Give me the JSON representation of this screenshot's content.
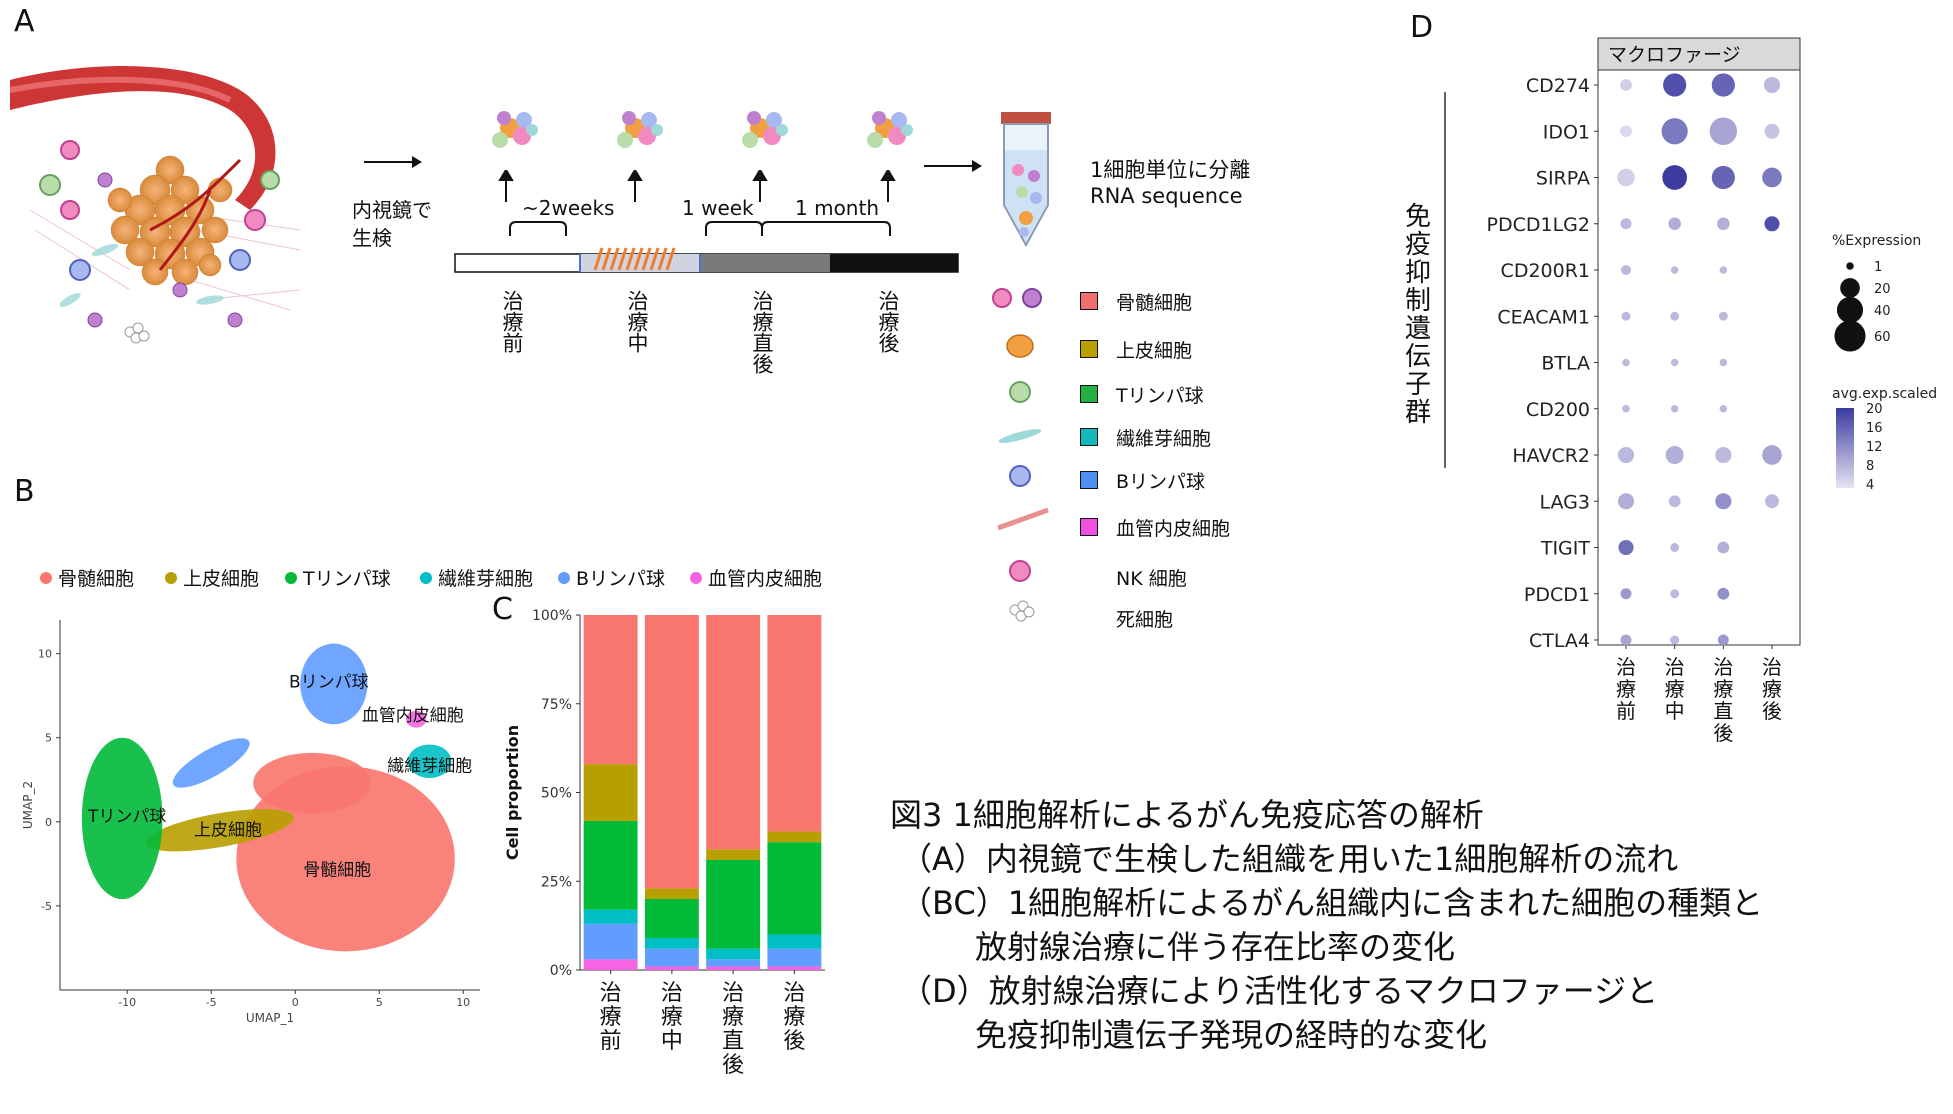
{
  "panels": {
    "a": "A",
    "b": "B",
    "c": "C",
    "d": "D"
  },
  "panel_a": {
    "step_biopsy": "内視鏡で\n生検",
    "sc_separation": "1細胞単位に分離",
    "rna_seq": "RNA sequence",
    "interval_1": "~2weeks",
    "interval_2": "1 week",
    "interval_3": "1 month",
    "timepoints": [
      "治療前",
      "治療中",
      "治療直後",
      "治療後"
    ],
    "cell_types": [
      {
        "label": "骨髄細胞",
        "color": "#F07070"
      },
      {
        "label": "上皮細胞",
        "color": "#B8A000"
      },
      {
        "label": "Tリンパ球",
        "color": "#22B040"
      },
      {
        "label": "繊維芽細胞",
        "color": "#14B8B8"
      },
      {
        "label": "Bリンパ球",
        "color": "#5090F0"
      },
      {
        "label": "血管内皮細胞",
        "color": "#F050E0"
      },
      {
        "label": "NK 細胞",
        "color": ""
      },
      {
        "label": "死細胞",
        "color": ""
      }
    ]
  },
  "umap_legend": [
    {
      "label": "骨髄細胞",
      "color": "#F8766D"
    },
    {
      "label": "上皮細胞",
      "color": "#B79F00"
    },
    {
      "label": "Tリンパ球",
      "color": "#00BA38"
    },
    {
      "label": "繊維芽細胞",
      "color": "#00BFC4"
    },
    {
      "label": "Bリンパ球",
      "color": "#619CFF"
    },
    {
      "label": "血管内皮細胞",
      "color": "#F564E3"
    }
  ],
  "chart_data": [
    {
      "type": "scatter",
      "panel": "B",
      "xlabel": "UMAP_1",
      "ylabel": "UMAP_2",
      "xlim": [
        -14,
        11
      ],
      "ylim": [
        -10,
        12
      ],
      "xticks": [
        -10,
        -5,
        0,
        5,
        10
      ],
      "yticks": [
        -5,
        0,
        5,
        10
      ],
      "clusters": [
        {
          "name": "骨髄細胞",
          "label": "骨髄細胞",
          "center": [
            2.5,
            -3.2
          ],
          "color": "#F8766D"
        },
        {
          "name": "上皮細胞",
          "label": "上皮細胞",
          "center": [
            -4,
            -0.8
          ],
          "color": "#B79F00"
        },
        {
          "name": "Tリンパ球",
          "label": "Tリンパ球",
          "center": [
            -10,
            0
          ],
          "color": "#00BA38"
        },
        {
          "name": "繊維芽細胞",
          "label": "繊維芽細胞",
          "center": [
            8,
            3
          ],
          "color": "#00BFC4"
        },
        {
          "name": "Bリンパ球",
          "label": "Bリンパ球",
          "center": [
            2,
            8
          ],
          "color": "#619CFF"
        },
        {
          "name": "血管内皮細胞",
          "label": "血管内皮細胞",
          "center": [
            7,
            6
          ],
          "color": "#F564E3"
        }
      ]
    },
    {
      "type": "bar",
      "panel": "C",
      "stacked": true,
      "ylabel": "Cell proportion",
      "yticks": [
        "0%",
        "25%",
        "50%",
        "75%",
        "100%"
      ],
      "ylim": [
        0,
        1
      ],
      "categories": [
        "治療前",
        "治療中",
        "治療直後",
        "治療後"
      ],
      "series": [
        {
          "name": "血管内皮細胞",
          "color": "#F564E3",
          "values": [
            0.03,
            0.01,
            0.01,
            0.01
          ]
        },
        {
          "name": "Bリンパ球",
          "color": "#619CFF",
          "values": [
            0.1,
            0.05,
            0.02,
            0.05
          ]
        },
        {
          "name": "繊維芽細胞",
          "color": "#00BFC4",
          "values": [
            0.04,
            0.03,
            0.03,
            0.04
          ]
        },
        {
          "name": "Tリンパ球",
          "color": "#00BA38",
          "values": [
            0.25,
            0.11,
            0.25,
            0.26
          ]
        },
        {
          "name": "上皮細胞",
          "color": "#B79F00",
          "values": [
            0.16,
            0.03,
            0.03,
            0.03
          ]
        },
        {
          "name": "骨髄細胞",
          "color": "#F8766D",
          "values": [
            0.42,
            0.77,
            0.66,
            0.61
          ]
        }
      ]
    },
    {
      "type": "scatter",
      "panel": "D",
      "subtype": "dotplot",
      "facet_label": "マクロファージ",
      "group_label": "免疫抑制遺伝子群",
      "genes": [
        "CD274",
        "IDO1",
        "SIRPA",
        "PDCD1LG2",
        "CD200R1",
        "CEACAM1",
        "BTLA",
        "CD200",
        "HAVCR2",
        "LAG3",
        "TIGIT",
        "PDCD1",
        "CTLA4"
      ],
      "conditions": [
        "治療前",
        "治療中",
        "治療直後",
        "治療後"
      ],
      "size_legend": {
        "title": "%Expression",
        "values": [
          1,
          20,
          40,
          60
        ]
      },
      "color_legend": {
        "title": "avg.exp.scaled",
        "ticks": [
          20,
          16,
          12,
          8,
          4
        ],
        "low": "#E6E4F2",
        "high": "#3B3BA0"
      },
      "pct_expression": [
        [
          5,
          30,
          30,
          12
        ],
        [
          5,
          40,
          45,
          10
        ],
        [
          15,
          35,
          30,
          20
        ],
        [
          4,
          6,
          6,
          10
        ],
        [
          3,
          1,
          1,
          0
        ],
        [
          2,
          2,
          2,
          0
        ],
        [
          1,
          1,
          1,
          0
        ],
        [
          1,
          1,
          1,
          0
        ],
        [
          12,
          16,
          12,
          20
        ],
        [
          12,
          5,
          12,
          8
        ],
        [
          10,
          2,
          5,
          0
        ],
        [
          4,
          2,
          5,
          0
        ],
        [
          4,
          2,
          4,
          0
        ]
      ],
      "avg_exp_scaled": [
        [
          6,
          18,
          16,
          8
        ],
        [
          5,
          14,
          10,
          7
        ],
        [
          6,
          20,
          16,
          14
        ],
        [
          8,
          9,
          9,
          18
        ],
        [
          8,
          8,
          8,
          0
        ],
        [
          8,
          8,
          8,
          0
        ],
        [
          8,
          8,
          8,
          0
        ],
        [
          8,
          8,
          8,
          0
        ],
        [
          8,
          9,
          8,
          10
        ],
        [
          9,
          8,
          12,
          8
        ],
        [
          15,
          8,
          9,
          0
        ],
        [
          11,
          8,
          12,
          0
        ],
        [
          10,
          8,
          11,
          0
        ]
      ]
    }
  ],
  "caption": {
    "title": "図3 1細胞解析によるがん免疫応答の解析",
    "line_a": "（A）内視鏡で生検した組織を用いた1細胞解析の流れ",
    "line_bc_1": "（BC）1細胞解析によるがん組織内に含まれた細胞の種類と",
    "line_bc_2": "放射線治療に伴う存在比率の変化",
    "line_d_1": "（D）放射線治療により活性化するマクロファージと",
    "line_d_2": "免疫抑制遺伝子発現の経時的な変化"
  }
}
